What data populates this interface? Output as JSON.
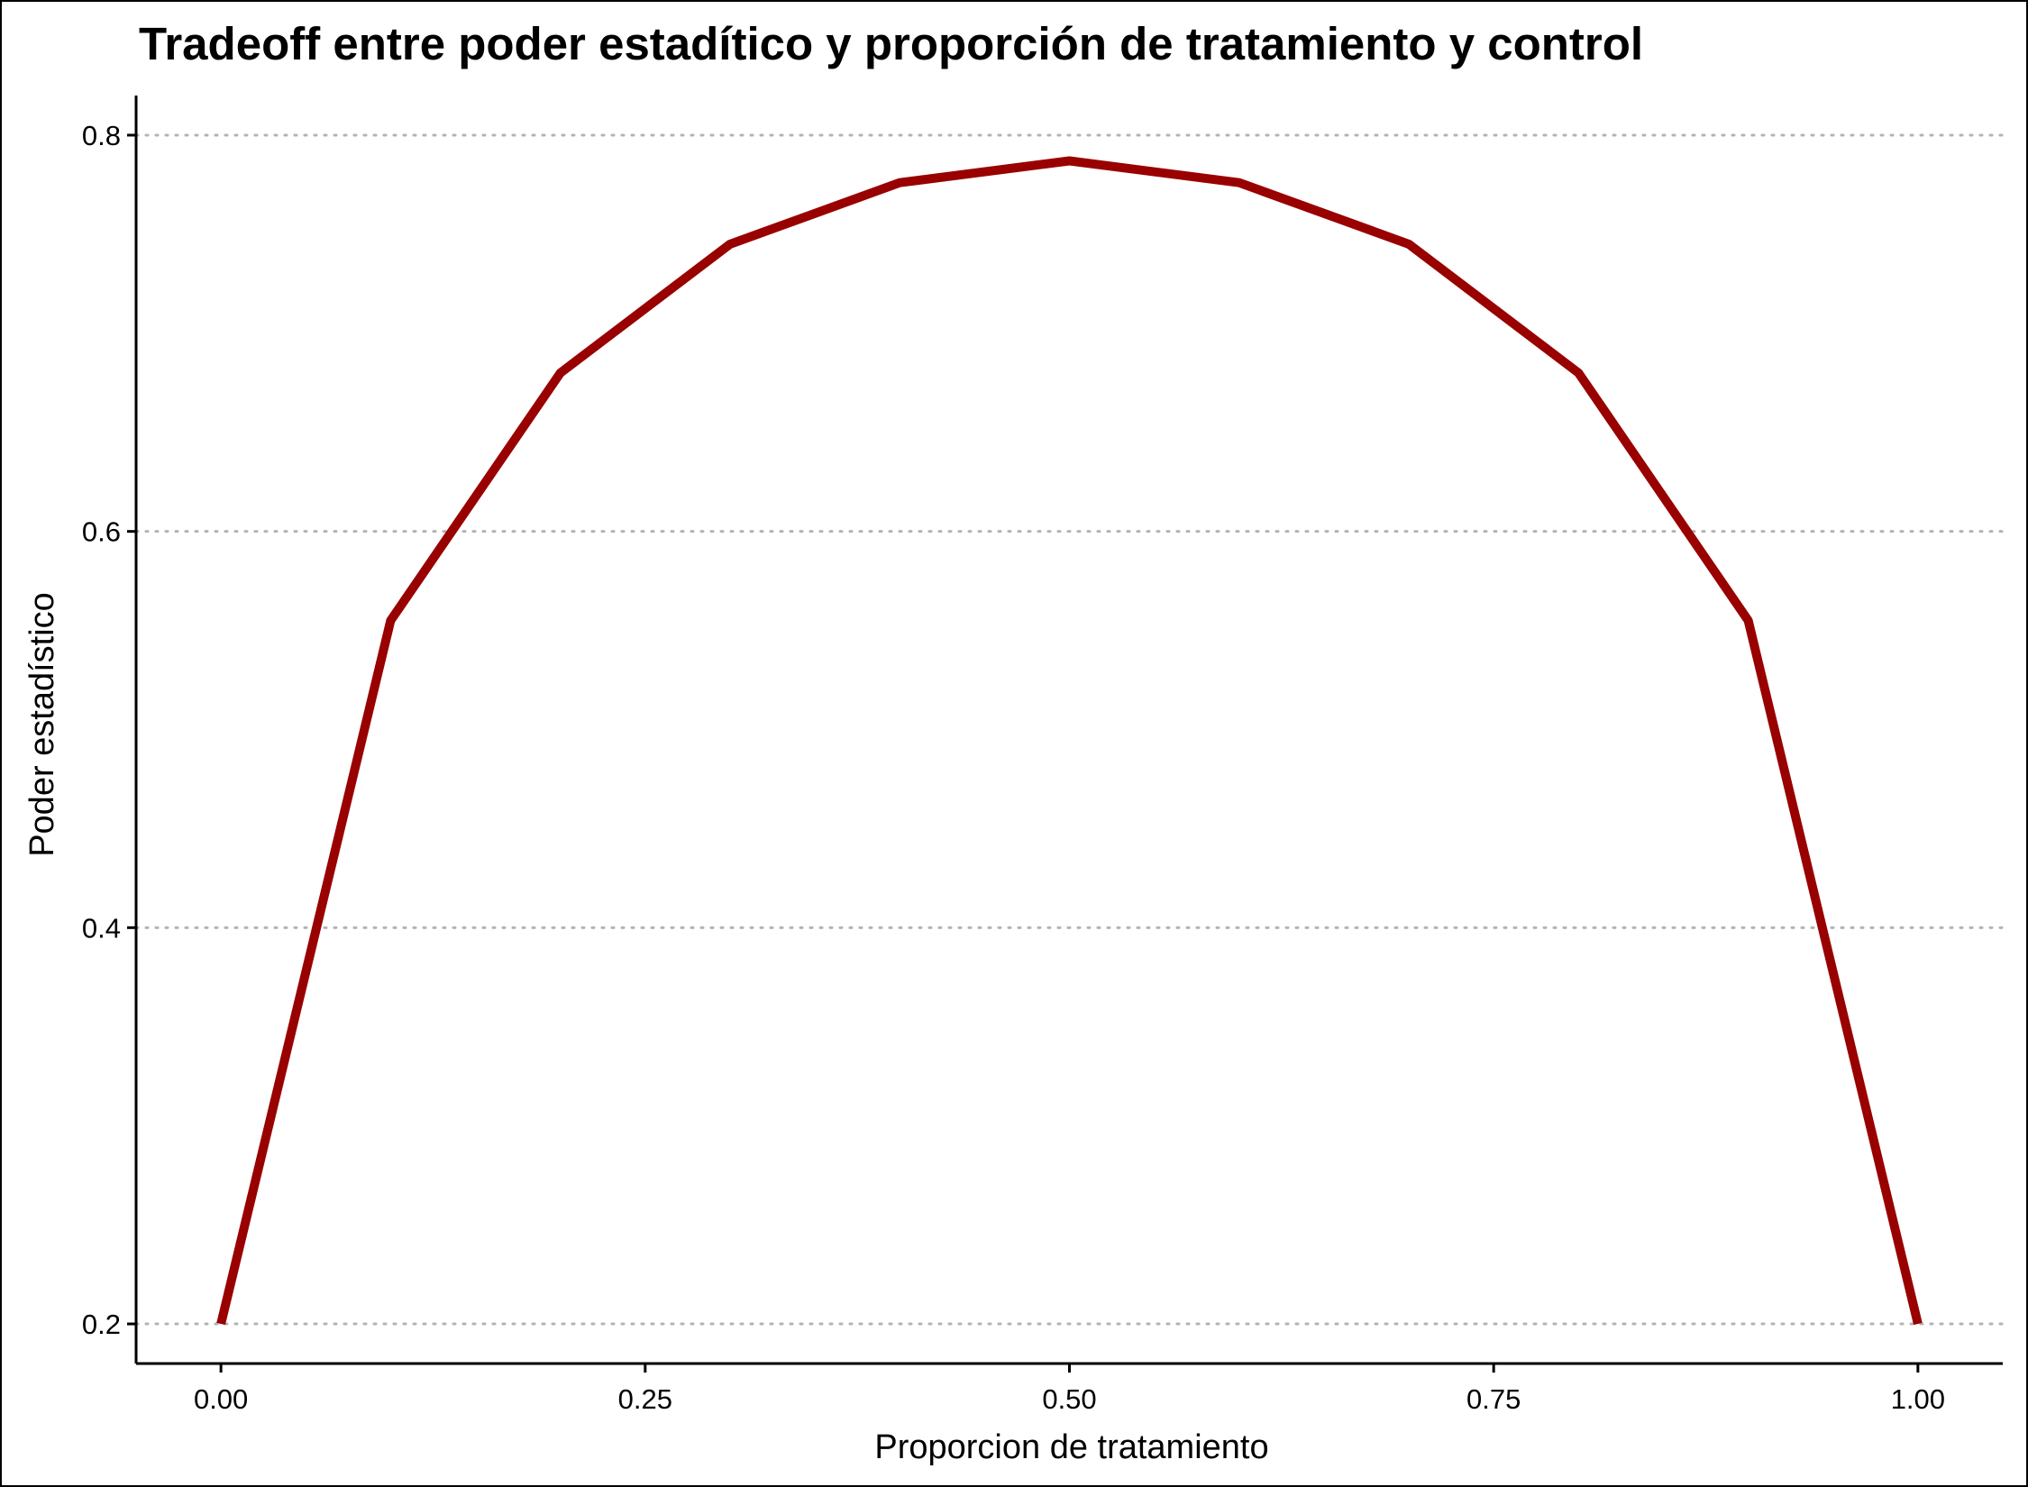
{
  "chart_data": {
    "type": "line",
    "title": "Tradeoff entre poder estadítico y proporción de tratamiento y control",
    "xlabel": "Proporcion de tratamiento",
    "ylabel": "Poder estadístico",
    "xlim": [
      -0.05,
      1.05
    ],
    "ylim": [
      0.18,
      0.82
    ],
    "xticks": [
      0.0,
      0.25,
      0.5,
      0.75,
      1.0
    ],
    "xtick_labels": [
      "0.00",
      "0.25",
      "0.50",
      "0.75",
      "1.00"
    ],
    "yticks": [
      0.2,
      0.4,
      0.6,
      0.8
    ],
    "ytick_labels": [
      "0.2",
      "0.4",
      "0.6",
      "0.8"
    ],
    "grid": "horizontal-dotted",
    "series": [
      {
        "color": "#990000",
        "x": [
          0.0,
          0.1,
          0.2,
          0.3,
          0.4,
          0.5,
          0.6,
          0.7,
          0.8,
          0.9,
          1.0
        ],
        "y": [
          0.2,
          0.555,
          0.68,
          0.745,
          0.776,
          0.787,
          0.776,
          0.745,
          0.68,
          0.555,
          0.2
        ]
      }
    ]
  }
}
